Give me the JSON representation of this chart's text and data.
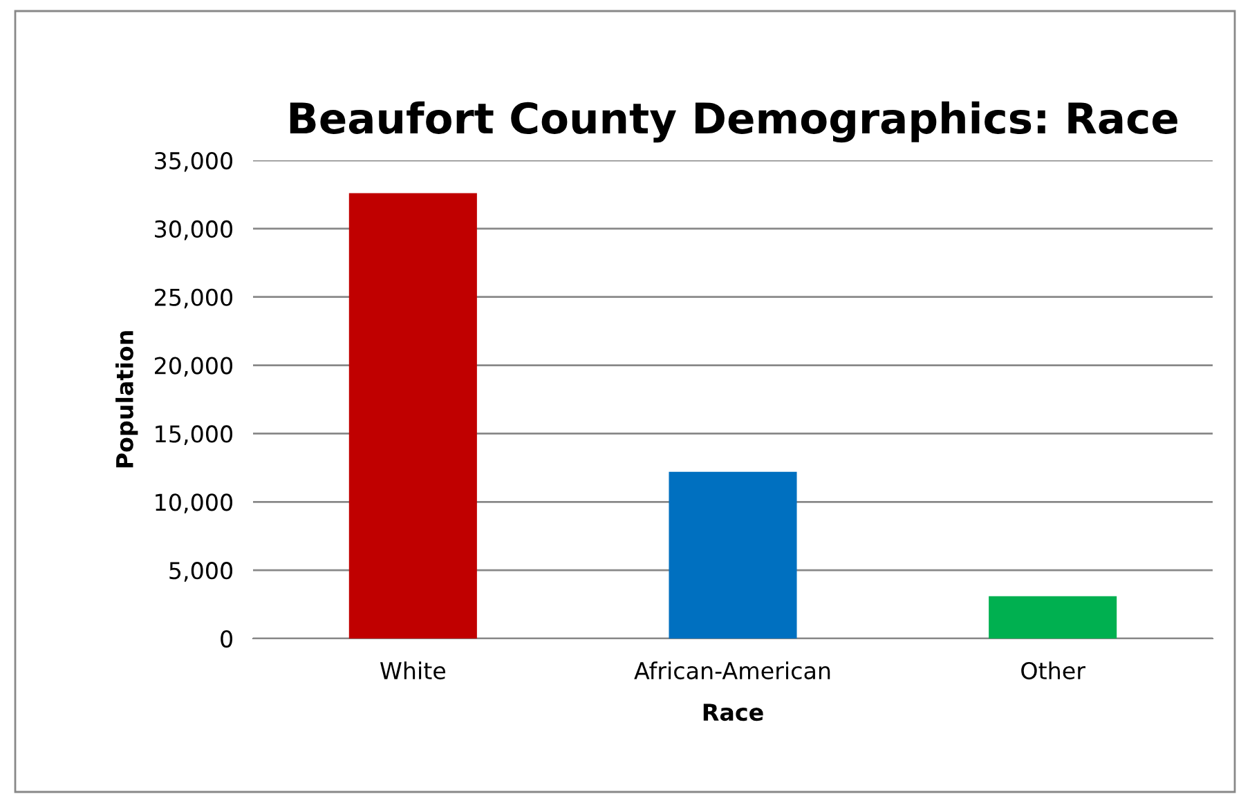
{
  "chart_data": {
    "type": "bar",
    "title": "Beaufort County Demographics: Race",
    "xlabel": "Race",
    "ylabel": "Population",
    "categories": [
      "White",
      "African-American",
      "Other"
    ],
    "values": [
      32600,
      12200,
      3100
    ],
    "colors": [
      "#c00000",
      "#0070c0",
      "#00b050"
    ],
    "ylim": [
      0,
      35000
    ],
    "yticks": [
      {
        "value": 0,
        "label": "0"
      },
      {
        "value": 5000,
        "label": "5,000"
      },
      {
        "value": 10000,
        "label": "10,000"
      },
      {
        "value": 15000,
        "label": "15,000"
      },
      {
        "value": 20000,
        "label": "20,000"
      },
      {
        "value": 25000,
        "label": "25,000"
      },
      {
        "value": 30000,
        "label": "30,000"
      },
      {
        "value": 35000,
        "label": "35,000"
      }
    ],
    "grid": "y",
    "legend": false
  }
}
